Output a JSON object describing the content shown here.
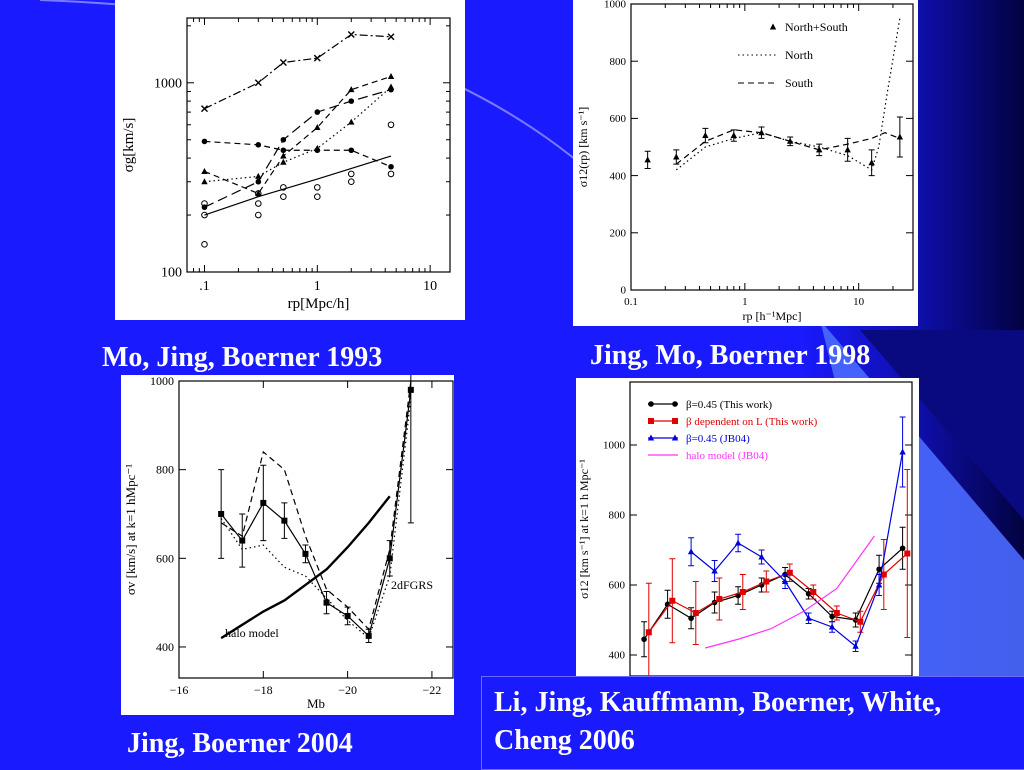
{
  "slide": {
    "captions": {
      "p1": "Mo, Jing, Boerner 1993",
      "p2": "Jing, Mo, Boerner 1998",
      "p3": "Jing, Boerner 2004",
      "p4_line1": "Li, Jing, Kauffmann, Boerner, White,",
      "p4_line2": "Cheng 2006"
    },
    "colors": {
      "background": "#1a1aff",
      "panel": "#ffffff",
      "caption": "#ffffff"
    }
  },
  "chart_data": [
    {
      "id": "p1",
      "type": "scatter",
      "xlabel": "rp[Mpc/h]",
      "ylabel": "σg[km/s]",
      "xscale": "log",
      "yscale": "log",
      "xlim": [
        0.07,
        15
      ],
      "ylim": [
        100,
        2200
      ],
      "xticks": [
        {
          "v": 0.1,
          "label": ".1"
        },
        {
          "v": 1,
          "label": "1"
        },
        {
          "v": 10,
          "label": "10"
        }
      ],
      "yticks": [
        {
          "v": 100,
          "label": "100"
        },
        {
          "v": 1000,
          "label": "1000"
        }
      ],
      "series": [
        {
          "style": "dashdot",
          "marker": "x",
          "x": [
            0.1,
            0.3,
            0.5,
            1,
            2,
            4.5
          ],
          "y": [
            730,
            1000,
            1280,
            1350,
            1800,
            1750
          ]
        },
        {
          "style": "longdash",
          "marker": "dot",
          "x": [
            0.1,
            0.3,
            0.5,
            1,
            2,
            4.5
          ],
          "y": [
            220,
            300,
            500,
            700,
            800,
            920
          ]
        },
        {
          "style": "dashed",
          "marker": "dot",
          "x": [
            0.1,
            0.3,
            0.5,
            1,
            2,
            4.5
          ],
          "y": [
            490,
            470,
            440,
            440,
            440,
            360
          ]
        },
        {
          "style": "dashed",
          "marker": "triangle",
          "x": [
            0.1,
            0.3,
            0.5,
            1,
            2,
            4.5
          ],
          "y": [
            340,
            260,
            410,
            580,
            920,
            1080
          ]
        },
        {
          "style": "dotted",
          "marker": "triangle",
          "x": [
            0.1,
            0.3,
            0.5,
            1,
            2,
            4.5
          ],
          "y": [
            300,
            320,
            380,
            450,
            620,
            950
          ]
        },
        {
          "style": "solid",
          "marker": "none",
          "x": [
            0.1,
            0.3,
            1,
            4.5
          ],
          "y": [
            200,
            250,
            310,
            410
          ]
        }
      ],
      "scatter_points": {
        "x": [
          0.1,
          0.1,
          0.1,
          0.3,
          0.3,
          0.3,
          0.5,
          0.5,
          1,
          1,
          2,
          2,
          4.5,
          4.5
        ],
        "y": [
          140,
          200,
          230,
          200,
          230,
          260,
          250,
          280,
          250,
          280,
          300,
          330,
          330,
          600
        ]
      }
    },
    {
      "id": "p2",
      "type": "line",
      "xlabel": "rp [h⁻¹Mpc]",
      "ylabel": "σ12(rp) [km s⁻¹]",
      "xscale": "log",
      "xlim": [
        0.1,
        30
      ],
      "ylim": [
        0,
        1000
      ],
      "xticks": [
        {
          "v": 0.1,
          "label": "0.1"
        },
        {
          "v": 1,
          "label": "1"
        },
        {
          "v": 10,
          "label": "10"
        }
      ],
      "yticks": [
        {
          "v": 0,
          "label": "0"
        },
        {
          "v": 200,
          "label": "200"
        },
        {
          "v": 400,
          "label": "400"
        },
        {
          "v": 600,
          "label": "600"
        },
        {
          "v": 800,
          "label": "800"
        },
        {
          "v": 1000,
          "label": "1000"
        }
      ],
      "legend": [
        "North+South",
        "North",
        "South"
      ],
      "legend_position": "top-right",
      "series": [
        {
          "name": "North+South",
          "style": "points",
          "x": [
            0.14,
            0.25,
            0.45,
            0.8,
            1.4,
            2.5,
            4.5,
            8,
            13,
            23
          ],
          "y": [
            455,
            465,
            540,
            540,
            550,
            520,
            490,
            490,
            445,
            535
          ],
          "err": [
            30,
            25,
            25,
            20,
            20,
            15,
            20,
            40,
            45,
            70
          ]
        },
        {
          "name": "North",
          "style": "dotted",
          "x": [
            0.25,
            0.45,
            0.8,
            1.4,
            2.5,
            4.5,
            8,
            13,
            15,
            18,
            23
          ],
          "y": [
            420,
            500,
            530,
            550,
            520,
            500,
            470,
            420,
            500,
            700,
            950
          ]
        },
        {
          "name": "South",
          "style": "dashed",
          "x": [
            0.25,
            0.45,
            0.8,
            1.4,
            2.5,
            4.5,
            8,
            13,
            17,
            23
          ],
          "y": [
            440,
            520,
            560,
            550,
            520,
            490,
            510,
            530,
            550,
            530
          ]
        }
      ]
    },
    {
      "id": "p3",
      "type": "line",
      "xlabel": "Mb",
      "ylabel": "σv [km/s] at k=1 hMpc⁻¹",
      "xlim": [
        -16,
        -22.5
      ],
      "ylim": [
        330,
        1000
      ],
      "xticks": [
        {
          "v": -16,
          "label": "−16"
        },
        {
          "v": -18,
          "label": "−18"
        },
        {
          "v": -20,
          "label": "−20"
        },
        {
          "v": -22,
          "label": "−22"
        }
      ],
      "yticks": [
        {
          "v": 400,
          "label": "400"
        },
        {
          "v": 600,
          "label": "600"
        },
        {
          "v": 800,
          "label": "800"
        },
        {
          "v": 1000,
          "label": "1000"
        }
      ],
      "annotations": [
        "2dFGRS",
        "halo model"
      ],
      "series": [
        {
          "style": "points-solid",
          "x": [
            -17,
            -17.5,
            -18,
            -18.5,
            -19,
            -19.5,
            -20,
            -20.5,
            -21,
            -21.5
          ],
          "y": [
            700,
            640,
            725,
            685,
            610,
            500,
            470,
            425,
            600,
            980
          ],
          "err": [
            100,
            60,
            85,
            40,
            20,
            25,
            20,
            15,
            40,
            300
          ]
        },
        {
          "style": "dashed",
          "x": [
            -17,
            -17.5,
            -18,
            -18.5,
            -19,
            -19.5,
            -20,
            -20.5,
            -21,
            -21.5
          ],
          "y": [
            680,
            650,
            840,
            800,
            650,
            530,
            490,
            440,
            620,
            1000
          ]
        },
        {
          "style": "dotted",
          "x": [
            -17,
            -17.5,
            -18,
            -18.5,
            -19,
            -19.5,
            -20,
            -20.5,
            -21,
            -21.5
          ],
          "y": [
            690,
            620,
            630,
            580,
            560,
            510,
            460,
            420,
            560,
            960
          ]
        },
        {
          "name": "halo model",
          "style": "solid-thick",
          "x": [
            -17,
            -17.5,
            -18,
            -18.5,
            -19,
            -19.5,
            -20,
            -20.5,
            -21
          ],
          "y": [
            420,
            450,
            480,
            505,
            540,
            575,
            625,
            680,
            740
          ]
        }
      ]
    },
    {
      "id": "p4",
      "type": "line",
      "xlabel": "",
      "ylabel": "σ12 [km s⁻¹] at k=1 h Mpc⁻¹",
      "xlim": [
        -16.2,
        -22.2
      ],
      "ylim": [
        340,
        1180
      ],
      "yticks": [
        {
          "v": 400,
          "label": "400"
        },
        {
          "v": 600,
          "label": "600"
        },
        {
          "v": 800,
          "label": "800"
        },
        {
          "v": 1000,
          "label": "1000"
        }
      ],
      "legend": [
        "β=0.45 (This work)",
        "β dependent on L (This work)",
        "β=0.45 (JB04)",
        "halo model (JB04)"
      ],
      "legend_position": "top-left",
      "series": [
        {
          "name": "β=0.45 (This work)",
          "color": "#000000",
          "x": [
            -16.5,
            -17,
            -17.5,
            -18,
            -18.5,
            -19,
            -19.5,
            -20,
            -20.5,
            -21,
            -21.5,
            -22
          ],
          "y": [
            445,
            545,
            505,
            550,
            570,
            600,
            630,
            575,
            510,
            500,
            645,
            705
          ],
          "err": [
            50,
            40,
            30,
            30,
            25,
            20,
            20,
            15,
            15,
            20,
            40,
            60
          ]
        },
        {
          "name": "β dependent on L (This work)",
          "color": "#e00000",
          "x": [
            -16.6,
            -17.1,
            -17.6,
            -18.1,
            -18.6,
            -19.1,
            -19.6,
            -20.1,
            -20.6,
            -21.1,
            -21.6,
            -22.1
          ],
          "y": [
            465,
            555,
            520,
            560,
            580,
            610,
            635,
            580,
            520,
            495,
            630,
            690
          ],
          "err": [
            140,
            120,
            90,
            60,
            50,
            30,
            25,
            20,
            20,
            30,
            100,
            240
          ]
        },
        {
          "name": "β=0.45 (JB04)",
          "color": "#0000dd",
          "x": [
            -17.5,
            -18,
            -18.5,
            -19,
            -19.5,
            -20,
            -20.5,
            -21,
            -21.5,
            -22
          ],
          "y": [
            695,
            640,
            720,
            680,
            610,
            505,
            480,
            425,
            600,
            980
          ],
          "err": [
            40,
            30,
            25,
            20,
            20,
            15,
            15,
            15,
            30,
            100
          ]
        },
        {
          "name": "halo model (JB04)",
          "color": "#ff33ff",
          "x": [
            -17.8,
            -18.5,
            -19.2,
            -19.9,
            -20.6,
            -21.4
          ],
          "y": [
            420,
            445,
            475,
            525,
            590,
            740
          ]
        }
      ]
    }
  ]
}
